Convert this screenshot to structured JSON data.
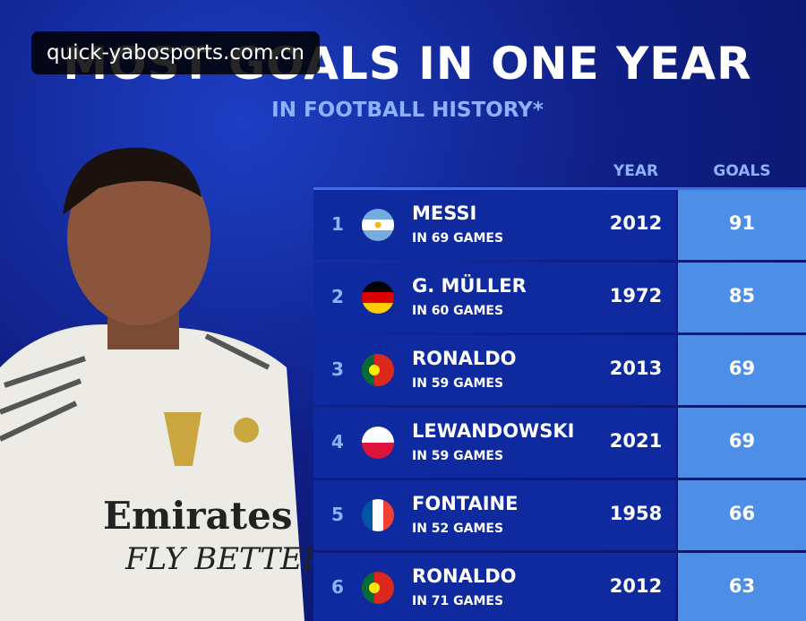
{
  "watermark": "quick-yabosports.com.cn",
  "header": {
    "title": "MOST GOALS IN ONE YEAR",
    "subtitle": "IN FOOTBALL HISTORY*"
  },
  "table": {
    "columns": [
      "YEAR",
      "GOALS"
    ],
    "rows": [
      {
        "rank": 1,
        "name": "MESSI",
        "games": "IN 69 GAMES",
        "year": 2012,
        "goals": 91
      },
      {
        "rank": 2,
        "name": "G. MÜLLER",
        "games": "IN 60 GAMES",
        "year": 1972,
        "goals": 85
      },
      {
        "rank": 3,
        "name": "RONALDO",
        "games": "IN 59 GAMES",
        "year": 2013,
        "goals": 69
      },
      {
        "rank": 4,
        "name": "LEWANDOWSKI",
        "games": "IN 59 GAMES",
        "year": 2021,
        "goals": 69
      },
      {
        "rank": 5,
        "name": "FONTAINE",
        "games": "IN 52 GAMES",
        "year": 1958,
        "goals": 66
      },
      {
        "rank": 6,
        "name": "RONALDO",
        "games": "IN 71 GAMES",
        "year": 2012,
        "goals": 63
      }
    ]
  }
}
